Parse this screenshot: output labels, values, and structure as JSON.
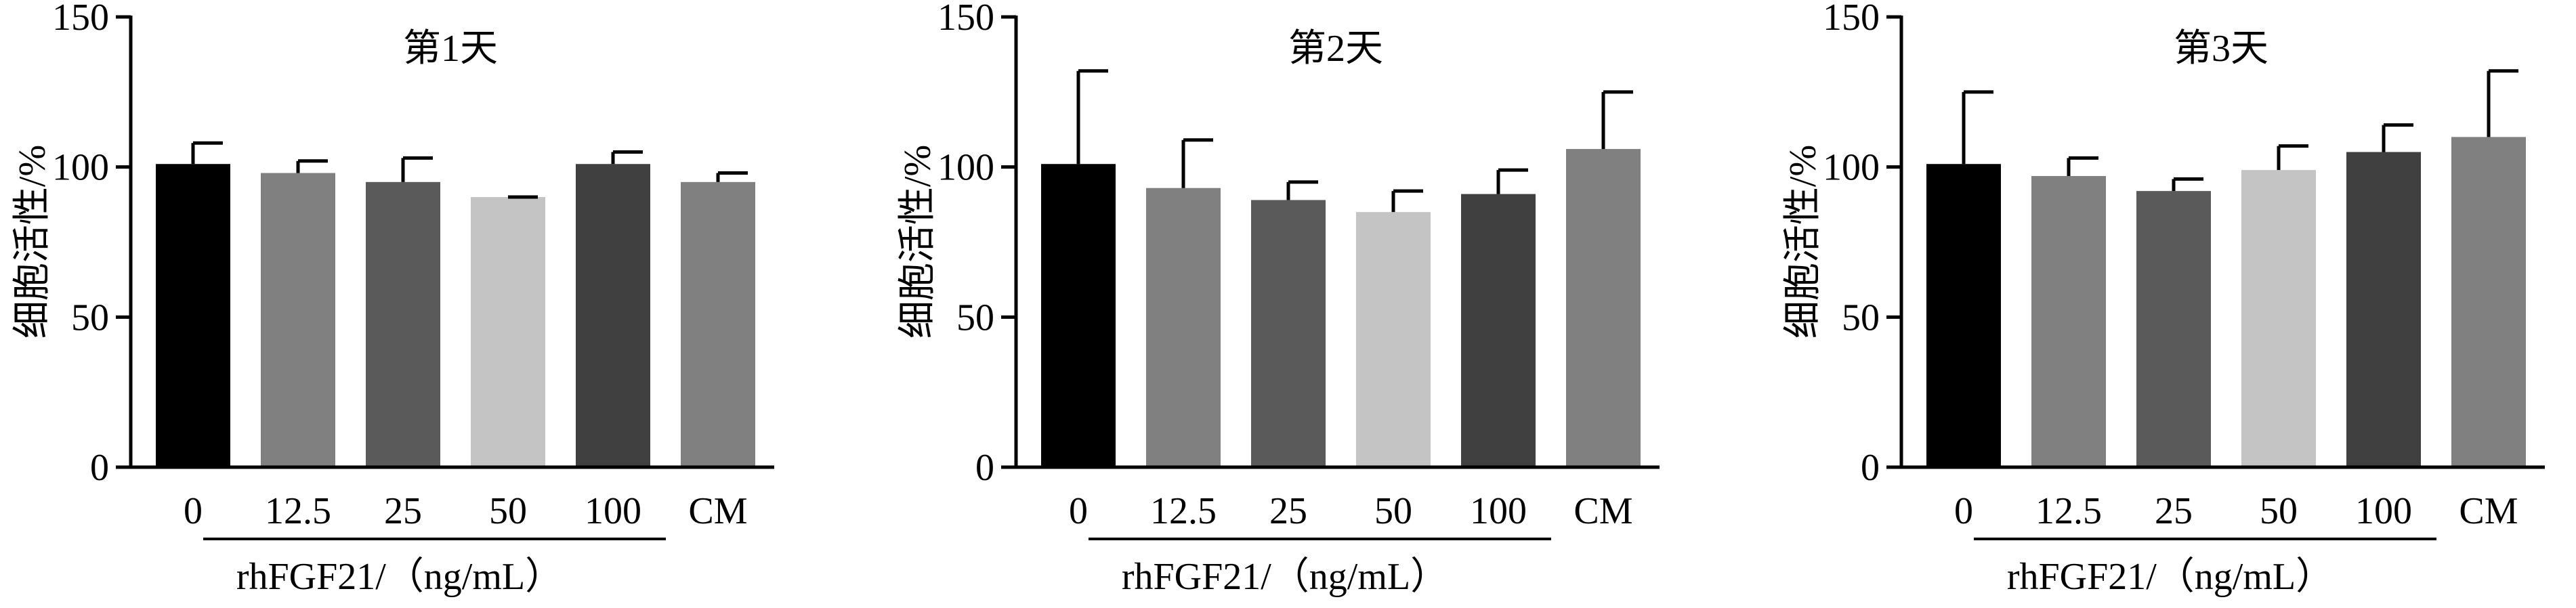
{
  "chart_data": [
    {
      "type": "bar",
      "title": "第1天",
      "ylabel": "细胞活性/%",
      "xlabel": "rhFGF21/（ng/mL）",
      "categories": [
        "0",
        "12.5",
        "25",
        "50",
        "100",
        "CM"
      ],
      "values": [
        101,
        98,
        95,
        90,
        101,
        95
      ],
      "errors": [
        7,
        4,
        8,
        0,
        4,
        3
      ],
      "colors": [
        "#000000",
        "#808080",
        "#5a5a5a",
        "#c4c4c4",
        "#404040",
        "#808080"
      ],
      "ylim": [
        0,
        150
      ],
      "yticks": [
        "0",
        "50",
        "100",
        "150"
      ],
      "grid": false
    },
    {
      "type": "bar",
      "title": "第2天",
      "ylabel": "细胞活性/%",
      "xlabel": "rhFGF21/（ng/mL）",
      "categories": [
        "0",
        "12.5",
        "25",
        "50",
        "100",
        "CM"
      ],
      "values": [
        101,
        93,
        89,
        85,
        91,
        106
      ],
      "errors": [
        31,
        16,
        6,
        7,
        8,
        19
      ],
      "colors": [
        "#000000",
        "#808080",
        "#5a5a5a",
        "#c4c4c4",
        "#404040",
        "#808080"
      ],
      "ylim": [
        0,
        150
      ],
      "yticks": [
        "0",
        "50",
        "100",
        "150"
      ],
      "grid": false
    },
    {
      "type": "bar",
      "title": "第3天",
      "ylabel": "细胞活性/%",
      "xlabel": "rhFGF21/（ng/mL）",
      "categories": [
        "0",
        "12.5",
        "25",
        "50",
        "100",
        "CM"
      ],
      "values": [
        101,
        97,
        92,
        99,
        105,
        110
      ],
      "errors": [
        24,
        6,
        4,
        8,
        9,
        22
      ],
      "colors": [
        "#000000",
        "#808080",
        "#5a5a5a",
        "#c4c4c4",
        "#404040",
        "#808080"
      ],
      "ylim": [
        0,
        150
      ],
      "yticks": [
        "0",
        "50",
        "100",
        "150"
      ],
      "grid": false
    }
  ]
}
